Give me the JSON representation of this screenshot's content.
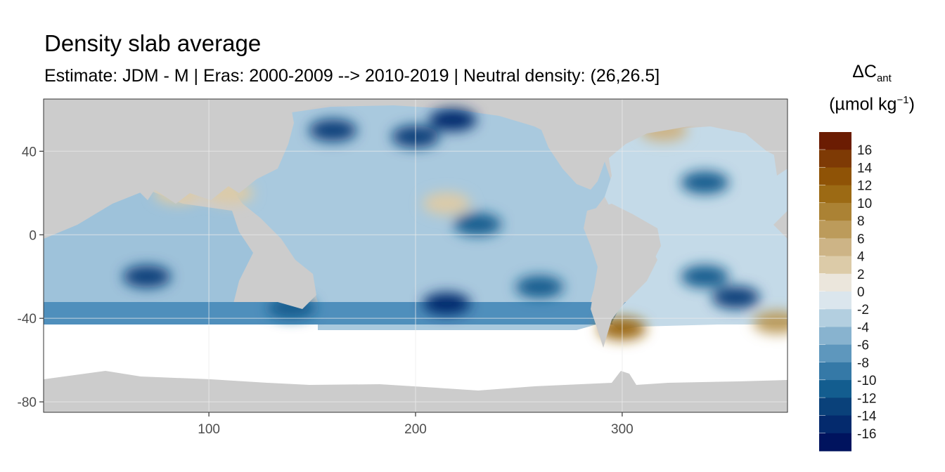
{
  "chart_data": {
    "type": "heatmap",
    "title": "Density slab average",
    "subtitle": "Estimate: JDM - M | Eras: 2000-2009 --> 2010-2019 | Neutral density: (26,26.5]",
    "xlabel": "",
    "ylabel": "",
    "xlim": [
      20,
      380
    ],
    "ylim": [
      -85,
      65
    ],
    "x_ticks": [
      100,
      200,
      300
    ],
    "y_ticks": [
      40,
      0,
      -40,
      -80
    ],
    "grid": true,
    "legend": {
      "position": "right",
      "title_main": "ΔC",
      "title_sub": "ant",
      "unit_open": "(µmol kg",
      "unit_sup": "−1",
      "unit_close": ")",
      "bins": [
        {
          "label": "16",
          "color": "#6b1c02"
        },
        {
          "label": "14",
          "color": "#7e3a05"
        },
        {
          "label": "12",
          "color": "#8f5306"
        },
        {
          "label": "10",
          "color": "#9c6a14"
        },
        {
          "label": "8",
          "color": "#ab8234"
        },
        {
          "label": "6",
          "color": "#bc9b5b"
        },
        {
          "label": "4",
          "color": "#cdb486"
        },
        {
          "label": "2",
          "color": "#dccba8"
        },
        {
          "label": "0",
          "color": "#ebe6dc"
        },
        {
          "label": "-2",
          "color": "#dbe6ed"
        },
        {
          "label": "-4",
          "color": "#b3cfe0"
        },
        {
          "label": "-6",
          "color": "#88b3cf"
        },
        {
          "label": "-8",
          "color": "#5e97bd"
        },
        {
          "label": "-10",
          "color": "#3579a7"
        },
        {
          "label": "-12",
          "color": "#135d8f"
        },
        {
          "label": "-14",
          "color": "#0a417a"
        },
        {
          "label": "-16",
          "color": "#042a6d"
        },
        {
          "label": "",
          "color": "#00135e"
        }
      ]
    },
    "land_color": "#cccccc",
    "nodata_color": "#ffffff",
    "ocean_data_region": {
      "lat_range": [
        -45,
        65
      ],
      "description_values": "dominantly negative (blue) in Pacific and Indian, positive (tan) in North/South Atlantic"
    },
    "hotspots": [
      {
        "lon": 160,
        "lat": 50,
        "value": -14
      },
      {
        "lon": 200,
        "lat": 47,
        "value": -14
      },
      {
        "lon": 218,
        "lat": 55,
        "value": -16
      },
      {
        "lon": 230,
        "lat": 5,
        "value": -12
      },
      {
        "lon": 70,
        "lat": -20,
        "value": -14
      },
      {
        "lon": 215,
        "lat": -33,
        "value": -16
      },
      {
        "lon": 260,
        "lat": -25,
        "value": -12
      },
      {
        "lon": 340,
        "lat": -20,
        "value": -12
      },
      {
        "lon": 355,
        "lat": -30,
        "value": -14
      },
      {
        "lon": 340,
        "lat": 25,
        "value": -12
      },
      {
        "lon": 140,
        "lat": -35,
        "value": -12
      },
      {
        "lon": 320,
        "lat": 50,
        "value": 4
      },
      {
        "lon": 215,
        "lat": 15,
        "value": 2
      },
      {
        "lon": 300,
        "lat": -45,
        "value": 10
      },
      {
        "lon": 375,
        "lat": -42,
        "value": 6
      },
      {
        "lon": 110,
        "lat": 20,
        "value": 2
      },
      {
        "lon": 85,
        "lat": 20,
        "value": 2
      }
    ]
  }
}
